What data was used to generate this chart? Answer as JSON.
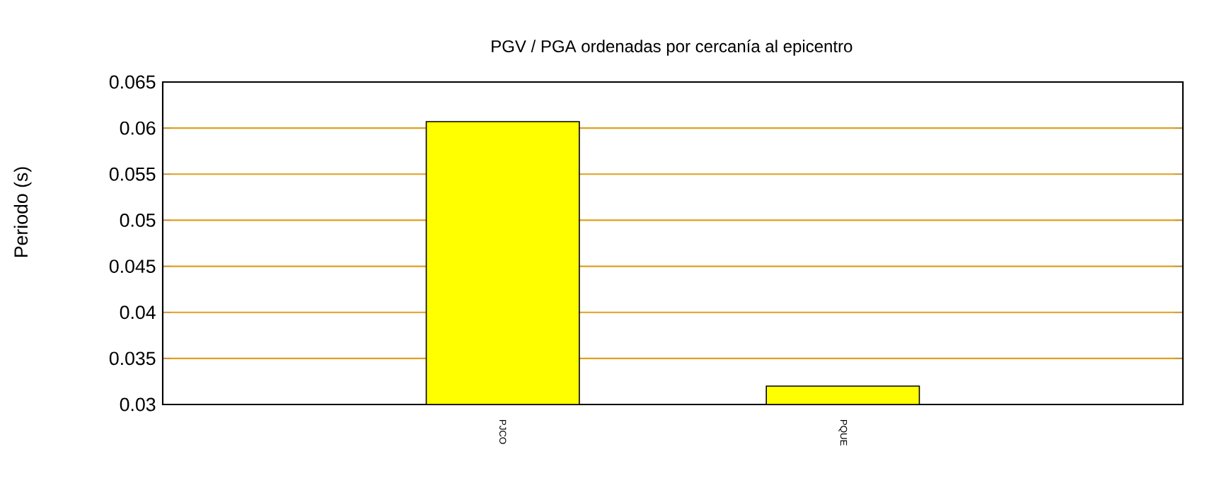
{
  "chart_data": {
    "type": "bar",
    "title": "PGV / PGA ordenadas por cercanía al epicentro",
    "ylabel": "Periodo (s)",
    "categories": [
      "PJCO",
      "PQUE"
    ],
    "values": [
      0.0607,
      0.032
    ],
    "color": "#ffff00",
    "ylim": [
      0.03,
      0.065
    ],
    "yticks": [
      0.03,
      0.035,
      0.04,
      0.045,
      0.05,
      0.055,
      0.06,
      0.065
    ],
    "grid": "y"
  }
}
